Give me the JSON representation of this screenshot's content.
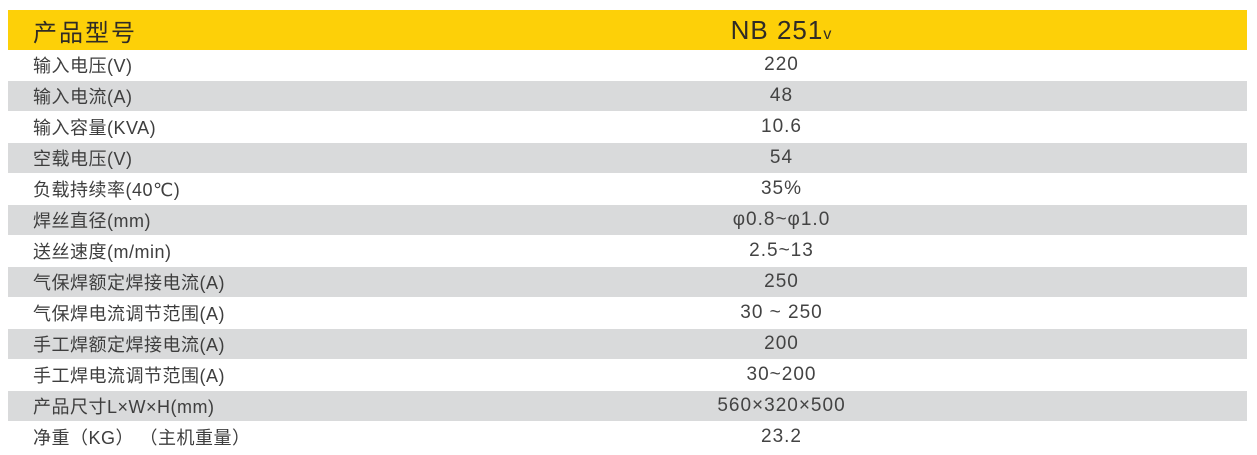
{
  "colors": {
    "header_bg": "#fdd008",
    "row_alt_bg": "#d9dadb",
    "header_text": "#2f2b26",
    "row_text": "#3e3e3e"
  },
  "table": {
    "header": {
      "label": "产品型号",
      "model_main": "NB 251",
      "model_sub": "v"
    },
    "rows": [
      {
        "label": "输入电压(V)",
        "value": "220"
      },
      {
        "label": "输入电流(A)",
        "value": "48"
      },
      {
        "label": "输入容量(KVA)",
        "value": "10.6"
      },
      {
        "label": "空载电压(V)",
        "value": "54"
      },
      {
        "label": "负载持续率(40℃)",
        "value": "35%"
      },
      {
        "label": "焊丝直径(mm)",
        "value": "φ0.8~φ1.0"
      },
      {
        "label": "送丝速度(m/min)",
        "value": "2.5~13"
      },
      {
        "label": "气保焊额定焊接电流(A)",
        "value": "250"
      },
      {
        "label": "气保焊电流调节范围(A)",
        "value": "30 ~ 250"
      },
      {
        "label": "手工焊额定焊接电流(A)",
        "value": "200"
      },
      {
        "label": "手工焊电流调节范围(A)",
        "value": "30~200"
      },
      {
        "label": "产品尺寸L×W×H(mm)",
        "value": "560×320×500"
      },
      {
        "label": "净重（KG） （主机重量）",
        "value": "23.2"
      }
    ]
  }
}
